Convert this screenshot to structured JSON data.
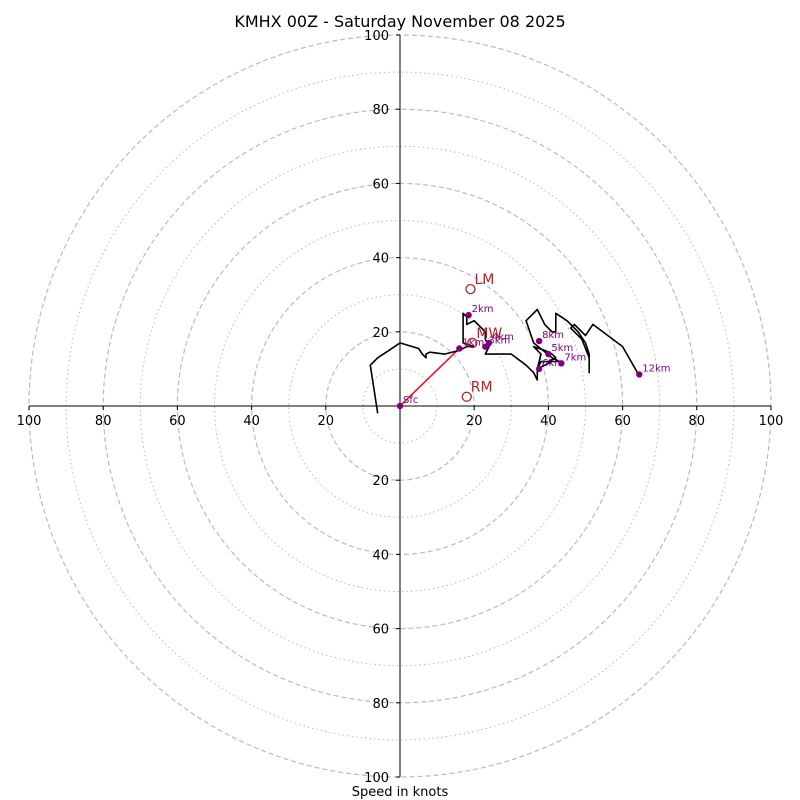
{
  "chart_data": {
    "type": "hodograph",
    "title": "KMHX 00Z - Saturday November 08 2025",
    "xlabel": "Speed in knots",
    "range": [
      -100,
      100
    ],
    "ring_step": 10,
    "major_rings": [
      20,
      40,
      60,
      80,
      100
    ],
    "tick_values": [
      20,
      40,
      60,
      80,
      100
    ],
    "tick_labels": [
      "20",
      "40",
      "60",
      "80",
      "100"
    ],
    "grid": true,
    "colors": {
      "trace": "#000000",
      "height_marker": "#800080",
      "storm_motion": "#b22222",
      "shear_vector": "#e41a1c",
      "grid": "#bbbbbb"
    },
    "trace": [
      [
        -6,
        -2
      ],
      [
        -8,
        11
      ],
      [
        -6,
        13
      ],
      [
        -3,
        15
      ],
      [
        0,
        17
      ],
      [
        5,
        15.5
      ],
      [
        6,
        14
      ],
      [
        7,
        13
      ],
      [
        7,
        14
      ],
      [
        8,
        14.5
      ],
      [
        12,
        14
      ],
      [
        16,
        15
      ],
      [
        18,
        16
      ],
      [
        20,
        16
      ],
      [
        17,
        17
      ],
      [
        17,
        25
      ],
      [
        18,
        24
      ],
      [
        18,
        22
      ],
      [
        20,
        23
      ],
      [
        22,
        21
      ],
      [
        23,
        20
      ],
      [
        23,
        18
      ],
      [
        24,
        16
      ],
      [
        23,
        14
      ],
      [
        30,
        14
      ],
      [
        34,
        11
      ],
      [
        36,
        9
      ],
      [
        37,
        7
      ],
      [
        37,
        10
      ],
      [
        38,
        14
      ],
      [
        36,
        16
      ],
      [
        39,
        15
      ],
      [
        41,
        14
      ],
      [
        42,
        13
      ],
      [
        40,
        12
      ],
      [
        38,
        12
      ],
      [
        37,
        10
      ],
      [
        41,
        12
      ],
      [
        43,
        12
      ],
      [
        41,
        13
      ],
      [
        36,
        17
      ],
      [
        34,
        23
      ],
      [
        37,
        26
      ],
      [
        39,
        22
      ],
      [
        41,
        20
      ],
      [
        42,
        20
      ],
      [
        42,
        25
      ],
      [
        45,
        23
      ],
      [
        48,
        20
      ],
      [
        50,
        17
      ],
      [
        51,
        14
      ],
      [
        51,
        9
      ],
      [
        51,
        13
      ],
      [
        49,
        18
      ],
      [
        46,
        21
      ],
      [
        47,
        22
      ],
      [
        50,
        19
      ],
      [
        52,
        22
      ],
      [
        60,
        16
      ],
      [
        64,
        9
      ]
    ],
    "heights": [
      {
        "label": "Sfc",
        "u": 0,
        "v": 0
      },
      {
        "label": "1km",
        "u": 16,
        "v": 15.5
      },
      {
        "label": "2km",
        "u": 18.5,
        "v": 24.5
      },
      {
        "label": "3km",
        "u": 23,
        "v": 16
      },
      {
        "label": "4km",
        "u": 24,
        "v": 17
      },
      {
        "label": "5km",
        "u": 40,
        "v": 14
      },
      {
        "label": "6km",
        "u": 37.5,
        "v": 10
      },
      {
        "label": "7km",
        "u": 43.5,
        "v": 11.5
      },
      {
        "label": "8km",
        "u": 37.5,
        "v": 17.5
      },
      {
        "label": "12km",
        "u": 64.5,
        "v": 8.5
      }
    ],
    "storm_motions": [
      {
        "label": "LM",
        "u": 19,
        "v": 31.5
      },
      {
        "label": "MW",
        "u": 19.5,
        "v": 17
      },
      {
        "label": "RM",
        "u": 18,
        "v": 2.5
      }
    ],
    "shear_vector": {
      "from": [
        0,
        0
      ],
      "to": [
        16.5,
        16
      ]
    }
  }
}
